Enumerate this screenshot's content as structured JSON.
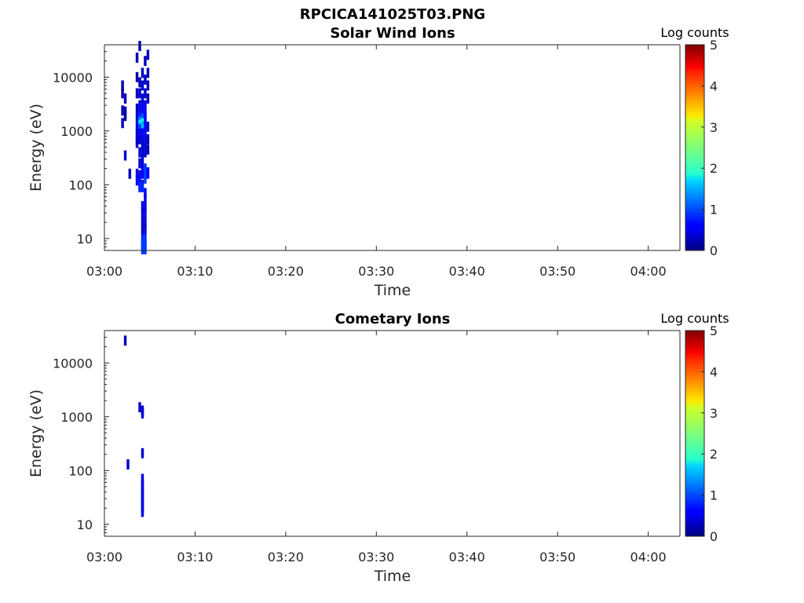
{
  "figure": {
    "title": "RPCICA141025T03.PNG"
  },
  "chart_data": [
    {
      "type": "heatmap",
      "title": "Solar Wind Ions",
      "xlabel": "Time",
      "ylabel": "Energy (eV)",
      "x_tick_labels": [
        "03:00",
        "03:10",
        "03:20",
        "03:30",
        "03:40",
        "03:50",
        "04:00"
      ],
      "x_range_minutes": [
        0,
        63.5
      ],
      "y_scale": "log",
      "y_tick_labels": [
        "10",
        "100",
        "1000",
        "10000"
      ],
      "y_ticks": [
        10,
        100,
        1000,
        10000
      ],
      "ylim": [
        6,
        40000
      ],
      "colorbar": {
        "label": "Log counts",
        "range": [
          0,
          5
        ],
        "ticks": [
          "0",
          "1",
          "2",
          "3",
          "4",
          "5"
        ],
        "colormap": "jet"
      },
      "cells": [
        [
          2.0,
          7000,
          0.2
        ],
        [
          2.0,
          5000,
          0.2
        ],
        [
          2.3,
          4000,
          0.3
        ],
        [
          2.0,
          2400,
          0.3
        ],
        [
          2.3,
          2300,
          0.2
        ],
        [
          2.0,
          1400,
          0.3
        ],
        [
          2.3,
          1900,
          0.2
        ],
        [
          2.3,
          350,
          0.4
        ],
        [
          2.8,
          160,
          0.3
        ],
        [
          3.6,
          23000,
          0.2
        ],
        [
          3.6,
          10000,
          0.2
        ],
        [
          3.9,
          38000,
          0.3
        ],
        [
          3.6,
          5000,
          0.3
        ],
        [
          3.6,
          2600,
          0.3
        ],
        [
          3.6,
          1700,
          0.4
        ],
        [
          3.6,
          1200,
          0.5
        ],
        [
          3.6,
          900,
          0.4
        ],
        [
          3.6,
          700,
          0.4
        ],
        [
          3.6,
          600,
          0.3
        ],
        [
          3.6,
          160,
          0.5
        ],
        [
          3.6,
          120,
          0.6
        ],
        [
          3.9,
          8000,
          0.3
        ],
        [
          3.9,
          5000,
          0.4
        ],
        [
          3.9,
          3000,
          0.5
        ],
        [
          3.9,
          2200,
          0.5
        ],
        [
          3.9,
          1700,
          0.8
        ],
        [
          3.9,
          1500,
          1.2
        ],
        [
          3.9,
          1300,
          1.8
        ],
        [
          3.9,
          1100,
          0.9
        ],
        [
          3.9,
          900,
          0.5
        ],
        [
          3.9,
          700,
          0.4
        ],
        [
          3.9,
          400,
          0.4
        ],
        [
          3.9,
          250,
          0.4
        ],
        [
          3.9,
          150,
          0.5
        ],
        [
          3.9,
          100,
          0.7
        ],
        [
          3.9,
          90,
          0.8
        ],
        [
          4.2,
          12000,
          0.3
        ],
        [
          4.2,
          7000,
          0.4
        ],
        [
          4.2,
          4000,
          0.4
        ],
        [
          4.2,
          2600,
          0.6
        ],
        [
          4.2,
          1700,
          1.0
        ],
        [
          4.2,
          1400,
          2.0
        ],
        [
          4.2,
          1200,
          1.5
        ],
        [
          4.2,
          900,
          0.6
        ],
        [
          4.2,
          600,
          0.4
        ],
        [
          4.2,
          450,
          0.4
        ],
        [
          4.2,
          300,
          0.4
        ],
        [
          4.2,
          200,
          0.5
        ],
        [
          4.2,
          160,
          0.6
        ],
        [
          4.2,
          100,
          0.7
        ],
        [
          4.2,
          90,
          0.8
        ],
        [
          4.2,
          40,
          0.5
        ],
        [
          4.2,
          30,
          0.4
        ],
        [
          4.2,
          20,
          0.4
        ],
        [
          4.2,
          14,
          0.3
        ],
        [
          4.2,
          10,
          0.8
        ],
        [
          4.2,
          8,
          0.9
        ],
        [
          4.2,
          7,
          0.9
        ],
        [
          4.2,
          6.3,
          0.9
        ],
        [
          4.5,
          20000,
          0.3
        ],
        [
          4.5,
          9000,
          0.4
        ],
        [
          4.5,
          5000,
          0.4
        ],
        [
          4.5,
          3000,
          0.5
        ],
        [
          4.5,
          2000,
          0.6
        ],
        [
          4.5,
          1700,
          0.6
        ],
        [
          4.5,
          1200,
          0.6
        ],
        [
          4.5,
          900,
          0.5
        ],
        [
          4.5,
          600,
          0.4
        ],
        [
          4.5,
          400,
          0.4
        ],
        [
          4.5,
          200,
          0.8
        ],
        [
          4.5,
          180,
          0.9
        ],
        [
          4.5,
          160,
          0.9
        ],
        [
          4.5,
          130,
          0.9
        ],
        [
          4.5,
          70,
          0.6
        ],
        [
          4.5,
          55,
          0.5
        ],
        [
          4.5,
          40,
          0.5
        ],
        [
          4.5,
          30,
          0.5
        ],
        [
          4.5,
          20,
          0.4
        ],
        [
          4.5,
          15,
          0.4
        ],
        [
          4.5,
          10,
          0.8
        ],
        [
          4.5,
          8,
          0.9
        ],
        [
          4.5,
          7,
          0.9
        ],
        [
          4.5,
          6.3,
          0.9
        ],
        [
          4.8,
          26000,
          0.3
        ],
        [
          4.8,
          12000,
          0.3
        ],
        [
          4.8,
          7000,
          0.3
        ],
        [
          4.8,
          4000,
          0.3
        ],
        [
          4.8,
          1200,
          0.4
        ],
        [
          4.8,
          700,
          0.3
        ],
        [
          4.8,
          450,
          0.3
        ],
        [
          4.8,
          170,
          0.6
        ],
        [
          4.8,
          160,
          0.6
        ]
      ]
    },
    {
      "type": "heatmap",
      "title": "Cometary Ions",
      "xlabel": "Time",
      "ylabel": "Energy (eV)",
      "x_tick_labels": [
        "03:00",
        "03:10",
        "03:20",
        "03:30",
        "03:40",
        "03:50",
        "04:00"
      ],
      "x_range_minutes": [
        0,
        63.5
      ],
      "y_scale": "log",
      "y_tick_labels": [
        "10",
        "100",
        "1000",
        "10000"
      ],
      "y_ticks": [
        10,
        100,
        1000,
        10000
      ],
      "ylim": [
        6,
        40000
      ],
      "colorbar": {
        "label": "Log counts",
        "range": [
          0,
          5
        ],
        "ticks": [
          "0",
          "1",
          "2",
          "3",
          "4",
          "5"
        ],
        "colormap": "jet"
      },
      "cells": [
        [
          2.3,
          26000,
          0.3
        ],
        [
          3.9,
          1500,
          0.4
        ],
        [
          4.2,
          1300,
          0.4
        ],
        [
          4.2,
          1150,
          0.4
        ],
        [
          4.2,
          210,
          0.4
        ],
        [
          2.6,
          130,
          0.4
        ],
        [
          4.2,
          70,
          0.5
        ],
        [
          4.2,
          55,
          0.5
        ],
        [
          4.2,
          45,
          0.5
        ],
        [
          4.2,
          36,
          0.5
        ],
        [
          4.2,
          30,
          0.5
        ],
        [
          4.2,
          25,
          0.5
        ],
        [
          4.2,
          20,
          0.5
        ],
        [
          4.2,
          17,
          0.5
        ]
      ]
    }
  ]
}
